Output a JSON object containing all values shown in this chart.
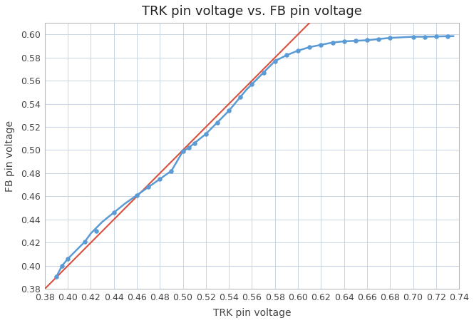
{
  "title": "TRK pin voltage vs. FB pin voltage",
  "xlabel": "TRK pin voltage",
  "ylabel": "FB pin voltage",
  "xlim": [
    0.38,
    0.74
  ],
  "ylim": [
    0.38,
    0.605
  ],
  "xticks": [
    0.38,
    0.4,
    0.42,
    0.44,
    0.46,
    0.48,
    0.5,
    0.52,
    0.54,
    0.56,
    0.58,
    0.6,
    0.62,
    0.64,
    0.66,
    0.68,
    0.7,
    0.72,
    0.74
  ],
  "yticks": [
    0.38,
    0.4,
    0.42,
    0.44,
    0.46,
    0.48,
    0.5,
    0.52,
    0.54,
    0.56,
    0.58,
    0.6
  ],
  "curve_x": [
    0.39,
    0.395,
    0.4,
    0.41,
    0.415,
    0.42,
    0.43,
    0.44,
    0.45,
    0.46,
    0.47,
    0.48,
    0.49,
    0.5,
    0.505,
    0.51,
    0.515,
    0.52,
    0.525,
    0.53,
    0.535,
    0.54,
    0.545,
    0.55,
    0.555,
    0.56,
    0.57,
    0.58,
    0.59,
    0.6,
    0.61,
    0.62,
    0.63,
    0.64,
    0.65,
    0.66,
    0.67,
    0.68,
    0.69,
    0.7,
    0.71,
    0.72,
    0.73,
    0.735
  ],
  "curve_y": [
    0.3905,
    0.4,
    0.406,
    0.416,
    0.421,
    0.428,
    0.438,
    0.446,
    0.454,
    0.461,
    0.468,
    0.475,
    0.482,
    0.499,
    0.502,
    0.506,
    0.51,
    0.514,
    0.519,
    0.524,
    0.529,
    0.534,
    0.54,
    0.546,
    0.552,
    0.557,
    0.567,
    0.577,
    0.582,
    0.586,
    0.589,
    0.591,
    0.593,
    0.594,
    0.5945,
    0.595,
    0.596,
    0.597,
    0.5975,
    0.598,
    0.598,
    0.5982,
    0.5985,
    0.5985
  ],
  "dot_x": [
    0.39,
    0.395,
    0.4,
    0.415,
    0.425,
    0.44,
    0.46,
    0.47,
    0.48,
    0.49,
    0.5,
    0.505,
    0.51,
    0.52,
    0.53,
    0.54,
    0.55,
    0.56,
    0.57,
    0.58,
    0.59,
    0.6,
    0.61,
    0.62,
    0.63,
    0.64,
    0.65,
    0.66,
    0.67,
    0.68,
    0.7,
    0.71,
    0.72,
    0.73
  ],
  "dot_y": [
    0.3905,
    0.4,
    0.406,
    0.421,
    0.43,
    0.446,
    0.461,
    0.468,
    0.475,
    0.482,
    0.499,
    0.502,
    0.506,
    0.514,
    0.524,
    0.534,
    0.546,
    0.557,
    0.567,
    0.577,
    0.582,
    0.586,
    0.589,
    0.591,
    0.593,
    0.594,
    0.5945,
    0.595,
    0.596,
    0.597,
    0.598,
    0.598,
    0.5982,
    0.5985
  ],
  "red_line_x": [
    0.38,
    0.625
  ],
  "red_line_y": [
    0.38,
    0.625
  ],
  "curve_color": "#5B9BD5",
  "dot_color": "#5B9BD5",
  "dot_edge_color": "#5B9BD5",
  "red_line_color": "#D94F3D",
  "bg_color": "#FFFFFF",
  "grid_color": "#C8D4E3",
  "title_fontsize": 13,
  "axis_label_fontsize": 10,
  "tick_fontsize": 9
}
